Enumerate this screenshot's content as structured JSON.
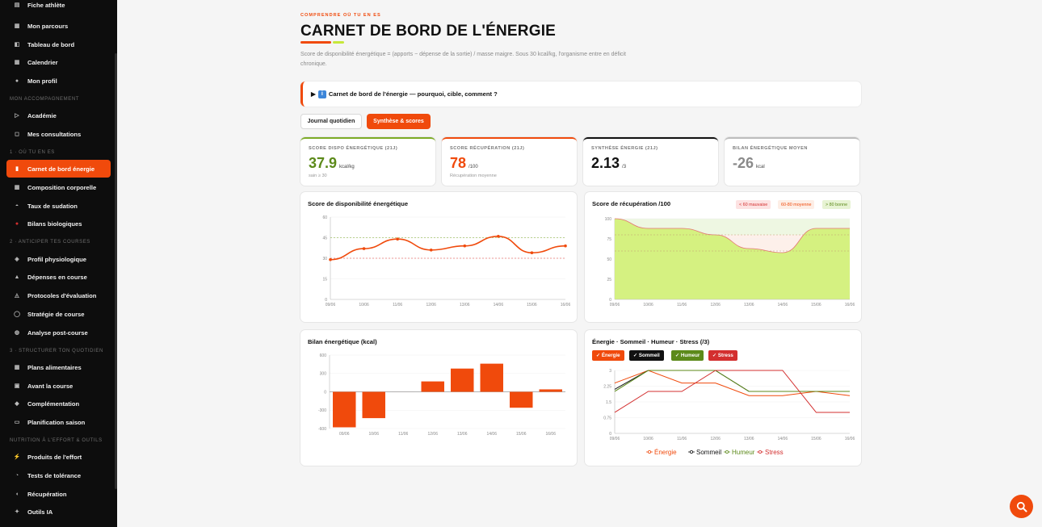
{
  "sidebar": {
    "items": [
      {
        "label": "Fiche athlète",
        "icon": "file-icon",
        "y": -5
      },
      {
        "label": "Mon parcours",
        "icon": "map-icon",
        "y": 21
      },
      {
        "label": "Tableau de bord",
        "icon": "dashboard-icon",
        "y": 44
      },
      {
        "label": "Calendrier",
        "icon": "calendar-icon",
        "y": 66
      },
      {
        "label": "Mon profil",
        "icon": "user-icon",
        "y": 89
      },
      {
        "label": "Académie",
        "icon": "play-icon",
        "y": 132
      },
      {
        "label": "Mes consultations",
        "icon": "consultation-icon",
        "y": 155
      },
      {
        "label": "Carnet de bord énergie",
        "icon": "energy-icon",
        "y": 198,
        "active": true
      },
      {
        "label": "Composition corporelle",
        "icon": "body-icon",
        "y": 221
      },
      {
        "label": "Taux de sudation",
        "icon": "drop-icon",
        "y": 244
      },
      {
        "label": "Bilans biologiques",
        "icon": "blood-icon",
        "y": 266
      },
      {
        "label": "Profil physiologique",
        "icon": "heart-icon",
        "y": 310
      },
      {
        "label": "Dépenses en course",
        "icon": "run-icon",
        "y": 332
      },
      {
        "label": "Protocoles d'évaluation",
        "icon": "protocol-icon",
        "y": 355
      },
      {
        "label": "Stratégie de course",
        "icon": "strategy-icon",
        "y": 378
      },
      {
        "label": "Analyse post-course",
        "icon": "analysis-icon",
        "y": 401
      },
      {
        "label": "Plans alimentaires",
        "icon": "plan-icon",
        "y": 444
      },
      {
        "label": "Avant la course",
        "icon": "before-icon",
        "y": 467
      },
      {
        "label": "Complémentation",
        "icon": "supplement-icon",
        "y": 489
      },
      {
        "label": "Planification saison",
        "icon": "season-icon",
        "y": 512
      },
      {
        "label": "Produits de l'effort",
        "icon": "bolt-icon",
        "y": 555
      },
      {
        "label": "Tests de tolérance",
        "icon": "test-icon",
        "y": 578
      },
      {
        "label": "Récupération",
        "icon": "recovery-icon",
        "y": 601
      },
      {
        "label": "Outils IA",
        "icon": "ai-icon",
        "y": 623
      }
    ],
    "sections": [
      {
        "label": "MON ACCOMPAGNEMENT",
        "y": 120
      },
      {
        "label": "1 · OÙ TU EN ES",
        "y": 186
      },
      {
        "label": "2 · ANTICIPER TES COURSES",
        "y": 297
      },
      {
        "label": "3 · STRUCTURER TON QUOTIDIEN",
        "y": 432
      },
      {
        "label": "NUTRITION À L'EFFORT & OUTILS",
        "y": 543
      }
    ]
  },
  "header": {
    "eyebrow": "COMPRENDRE OÙ TU EN ES",
    "title": "CARNET DE BORD DE L'ÉNERGIE",
    "description": "Score de disponibilité énergétique = (apports − dépense de la sortie) / masse maigre. Sous 30 kcal/kg, l'organisme entre en déficit chronique."
  },
  "accordion": {
    "arrow": "▶",
    "label": "Carnet de bord de l'énergie — pourquoi, cible, comment ?"
  },
  "tabs": {
    "journal": "Journal quotidien",
    "synthese": "Synthèse & scores"
  },
  "kpis": [
    {
      "label": "SCORE DISPO ÉNERGÉTIQUE (21J)",
      "value": "37.9",
      "unit": "kcal/kg",
      "sub": "sain ≥ 30",
      "color": "#5c8a1a",
      "border": "#7cab26"
    },
    {
      "label": "SCORE RÉCUPÉRATION (21J)",
      "value": "78",
      "unit": "/100",
      "sub": "Récupération moyenne",
      "color": "#f04a0c",
      "border": "#f04a0c"
    },
    {
      "label": "SYNTHÈSE ÉNERGIE (21J)",
      "value": "2.13",
      "unit": "/3",
      "sub": "",
      "color": "#111111",
      "border": "#111111"
    },
    {
      "label": "BILAN ÉNERGÉTIQUE MOYEN",
      "value": "-26",
      "unit": "kcal",
      "sub": "",
      "color": "#8a8a8a",
      "border": "#bdbdbd"
    }
  ],
  "charts": {
    "dispo_title": "Score de disponibilité énergétique",
    "recup_title": "Score de récupération /100",
    "recup_legend": [
      "< 60 mauvaise",
      "60-80 moyenne",
      "> 80 bonne"
    ],
    "bilan_title": "Bilan énergétique (kcal)",
    "multi_title": "Énergie · Sommeil · Humeur · Stress (/3)",
    "multi_chips": [
      "✓ Énergie",
      "✓ Sommeil",
      "✓ Humeur",
      "✓ Stress"
    ]
  },
  "chart_data": [
    {
      "type": "line",
      "title": "Score de disponibilité énergétique",
      "x": [
        "09/06",
        "10/06",
        "11/06",
        "12/06",
        "13/06",
        "14/06",
        "15/06",
        "16/06"
      ],
      "series": [
        {
          "name": "",
          "values": [
            29,
            37,
            44,
            36,
            39,
            46,
            34,
            39
          ]
        }
      ],
      "ylim": [
        0,
        60
      ],
      "yticks": [
        0,
        15,
        30,
        45,
        60
      ],
      "reference_lines": [
        45,
        30
      ],
      "color": "#f04a0c"
    },
    {
      "type": "area",
      "title": "Score de récupération /100",
      "x": [
        "09/06",
        "10/06",
        "11/06",
        "12/06",
        "13/06",
        "14/06",
        "15/06",
        "16/06"
      ],
      "series": [
        {
          "name": "",
          "values": [
            100,
            88,
            88,
            80,
            63,
            58,
            88,
            88
          ]
        }
      ],
      "ylim": [
        0,
        100
      ],
      "yticks": [
        0,
        25,
        50,
        75,
        100
      ],
      "reference_lines": [
        80,
        60
      ],
      "legend": [
        "< 60 mauvaise",
        "60-80 moyenne",
        "> 80 bonne"
      ]
    },
    {
      "type": "bar",
      "title": "Bilan énergétique (kcal)",
      "categories": [
        "09/06",
        "10/06",
        "11/06",
        "12/06",
        "13/06",
        "14/06",
        "15/06",
        "16/06"
      ],
      "values": [
        -580,
        -430,
        0,
        170,
        380,
        460,
        -260,
        40
      ],
      "ylim": [
        -600,
        600
      ],
      "yticks": [
        -600,
        -300,
        0,
        300,
        600
      ],
      "color": "#f04a0c"
    },
    {
      "type": "line",
      "title": "Énergie · Sommeil · Humeur · Stress (/3)",
      "x": [
        "09/06",
        "10/06",
        "11/06",
        "12/06",
        "13/06",
        "14/06",
        "15/06",
        "16/06"
      ],
      "series": [
        {
          "name": "Énergie",
          "values": [
            2.4,
            3,
            2.4,
            2.4,
            1.8,
            1.8,
            2,
            1.8
          ],
          "color": "#f04a0c"
        },
        {
          "name": "Sommeil",
          "values": [
            2.1,
            3,
            3,
            3,
            2,
            2,
            2,
            2
          ],
          "color": "#111111"
        },
        {
          "name": "Humeur",
          "values": [
            2,
            3,
            3,
            3,
            2,
            2,
            2,
            2
          ],
          "color": "#5c8a1a"
        },
        {
          "name": "Stress",
          "values": [
            1,
            2,
            2,
            3,
            3,
            3,
            1,
            1
          ],
          "color": "#d32f2f"
        }
      ],
      "ylim": [
        0,
        3
      ],
      "yticks": [
        0,
        0.75,
        1.5,
        2.25,
        3
      ]
    }
  ]
}
